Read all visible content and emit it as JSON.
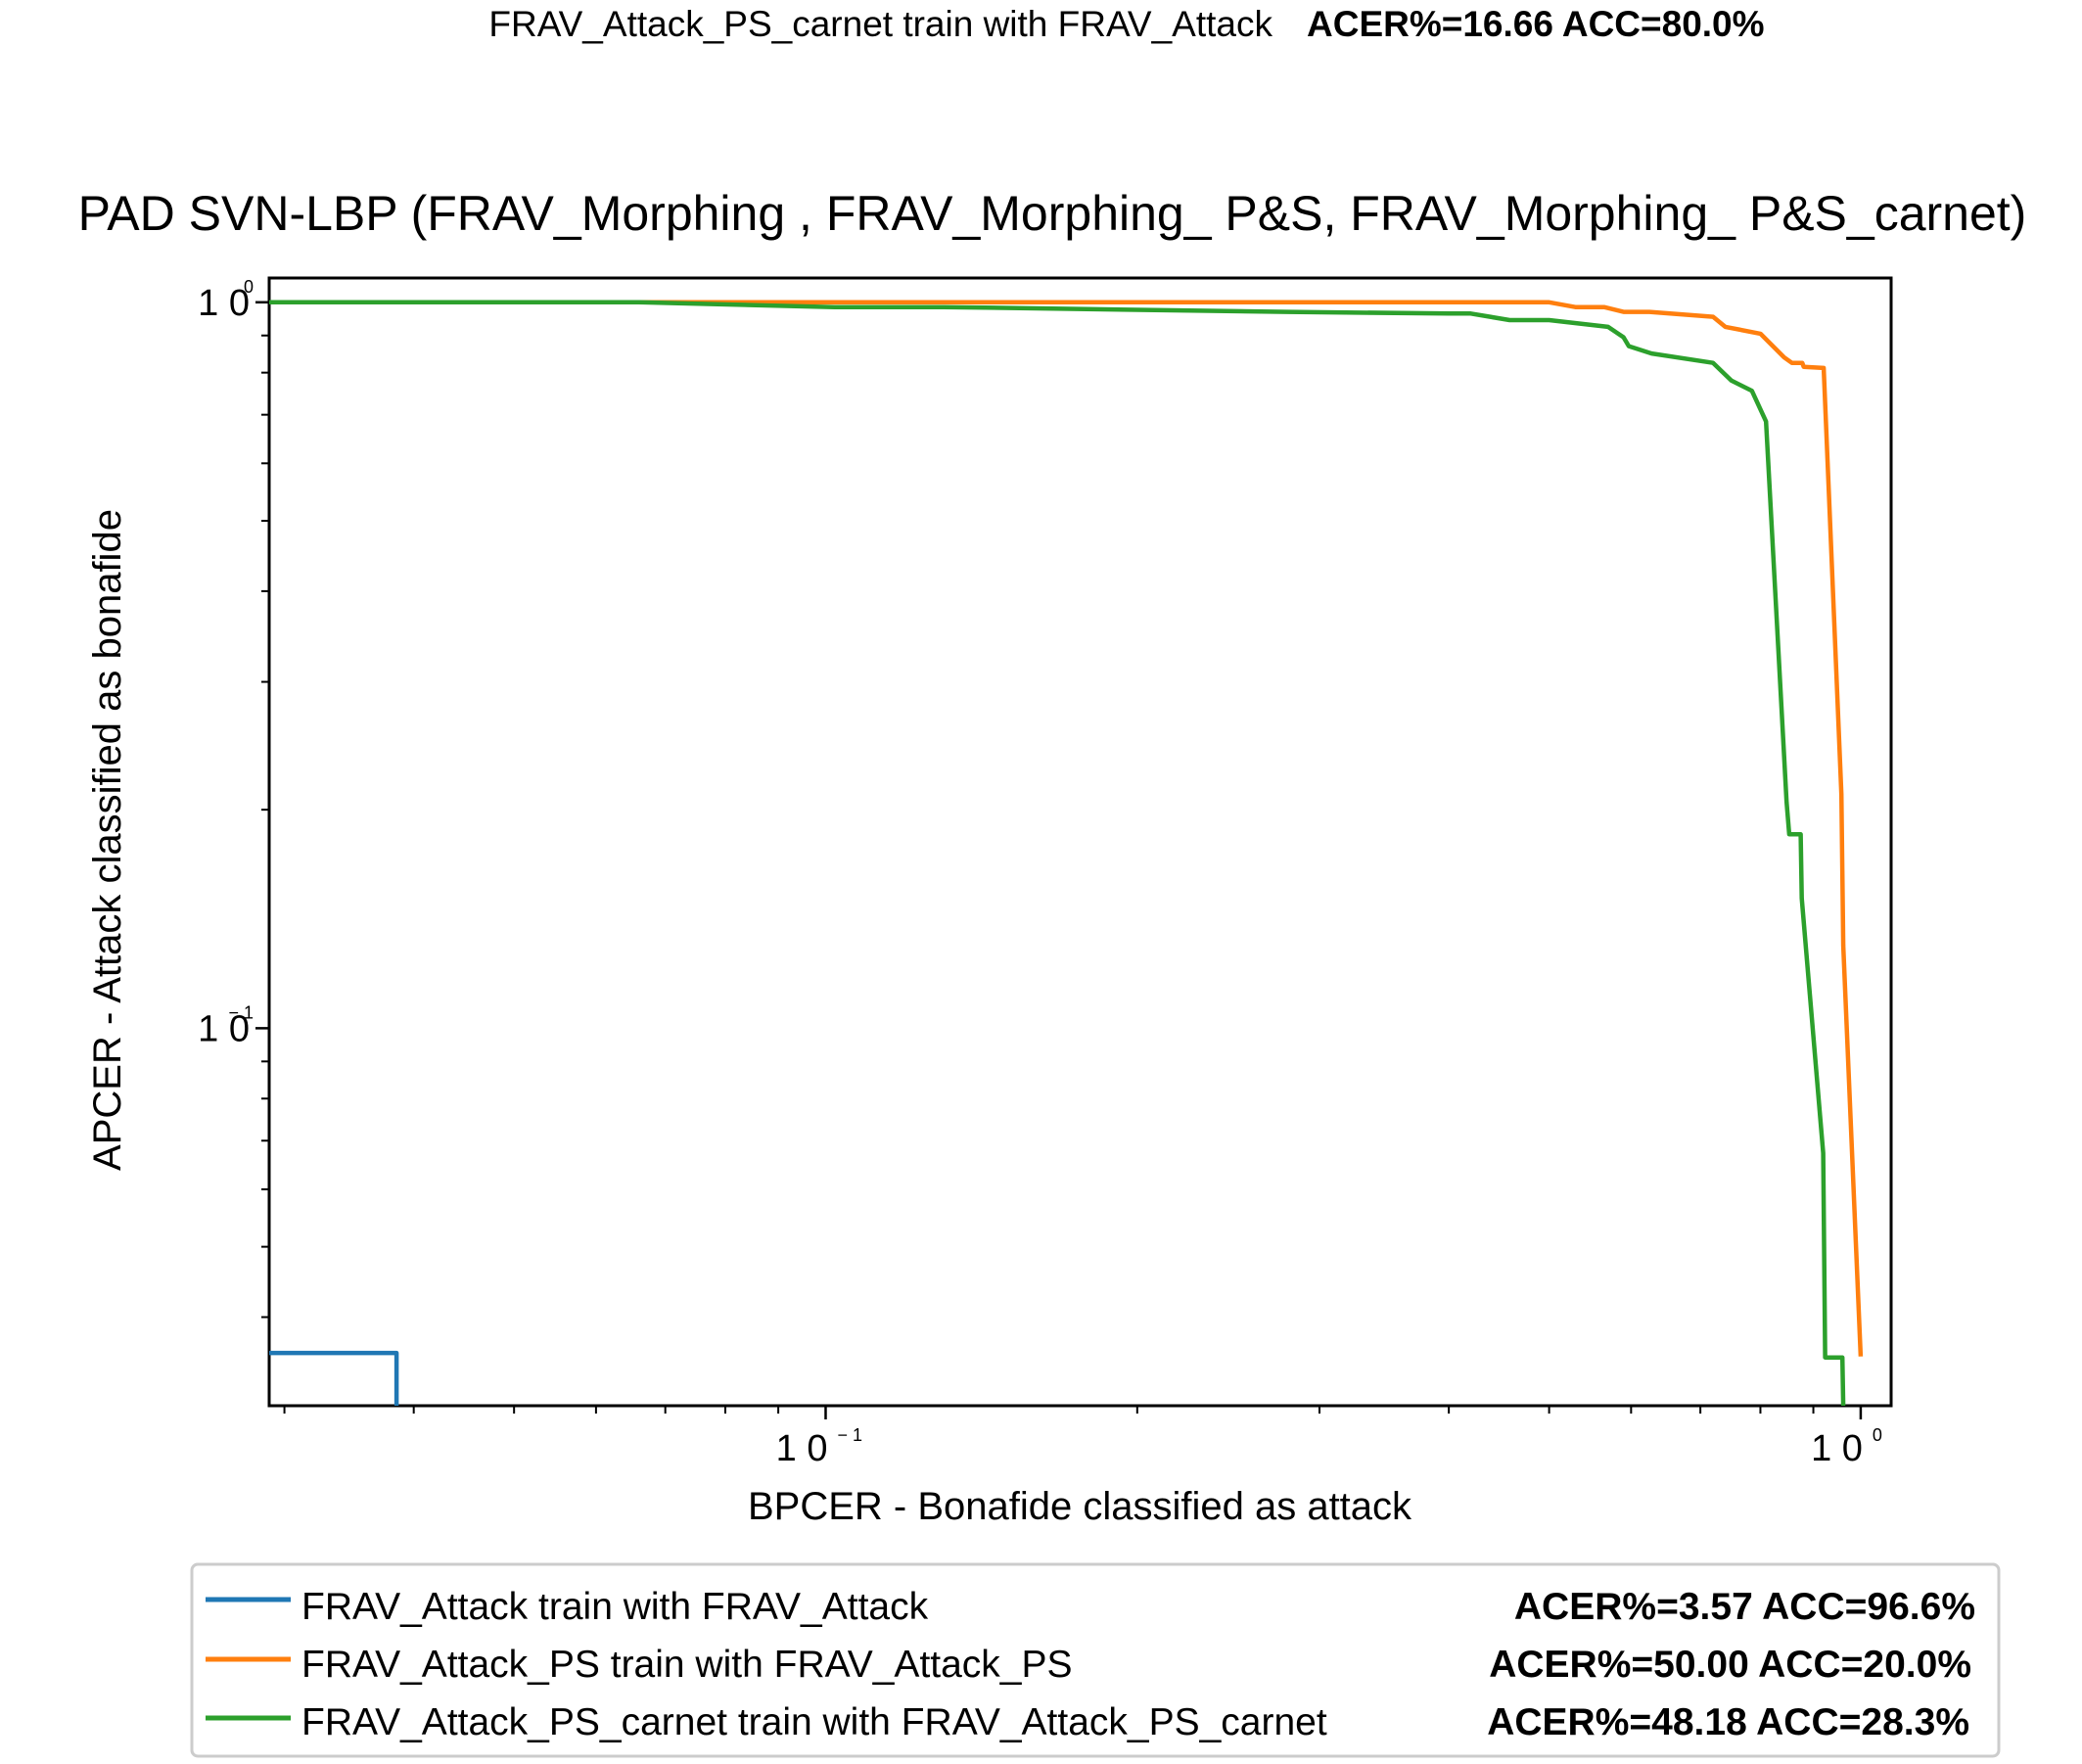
{
  "header": {
    "text": "FRAV_Attack_PS_carnet train with FRAV_Attack",
    "metrics": "ACER%=16.66 ACC=80.0%"
  },
  "chart_data": {
    "type": "line",
    "title": "PAD SVN-LBP (FRAV_Morphing , FRAV_Morphing_ P&S,  FRAV_Morphing_ P&S_carnet)",
    "xlabel": "BPCER - Bonafide classified as attack",
    "ylabel": "APCER - Attack classified as bonafide",
    "xscale": "log",
    "yscale": "log",
    "xlim": [
      0.029,
      1.07
    ],
    "ylim": [
      0.0302,
      1.08
    ],
    "x_ticks": [
      {
        "value": 0.1,
        "label": "1 0⁻¹"
      },
      {
        "value": 1.0,
        "label": "1 0⁰"
      }
    ],
    "y_ticks": [
      {
        "value": 0.1,
        "label": "1 0⁻¹"
      },
      {
        "value": 1.0,
        "label": "1 0⁰"
      }
    ],
    "grid": false,
    "legend_position": "bottom",
    "series": [
      {
        "name": "FRAV_Attack train with FRAV_Attack",
        "metrics": "ACER%=3.57 ACC=96.6%",
        "color": "#1f77b4",
        "points": [
          [
            0.029,
            0.0357
          ],
          [
            0.0385,
            0.0357
          ],
          [
            0.0385,
            0.0302
          ]
        ]
      },
      {
        "name": "FRAV_Attack_PS train with FRAV_Attack_PS",
        "metrics": "ACER%=50.00 ACC=20.0%",
        "color": "#ff7f0e",
        "points": [
          [
            0.029,
            1.0
          ],
          [
            0.5,
            1.0
          ],
          [
            0.53,
            0.985
          ],
          [
            0.565,
            0.985
          ],
          [
            0.59,
            0.97
          ],
          [
            0.625,
            0.97
          ],
          [
            0.72,
            0.955
          ],
          [
            0.74,
            0.925
          ],
          [
            0.8,
            0.905
          ],
          [
            0.843,
            0.84
          ],
          [
            0.858,
            0.825
          ],
          [
            0.878,
            0.825
          ],
          [
            0.881,
            0.815
          ],
          [
            0.921,
            0.812
          ],
          [
            0.958,
            0.21
          ],
          [
            0.962,
            0.13
          ],
          [
            1.0,
            0.0353
          ]
        ]
      },
      {
        "name": "FRAV_Attack_PS_carnet train with FRAV_Attack_PS_carnet",
        "metrics": "ACER%=48.18 ACC=28.3%",
        "color": "#2ca02c",
        "points": [
          [
            0.029,
            1.0
          ],
          [
            0.066,
            1.0
          ],
          [
            0.102,
            0.985
          ],
          [
            0.13,
            0.985
          ],
          [
            0.28,
            0.97
          ],
          [
            0.4,
            0.965
          ],
          [
            0.42,
            0.965
          ],
          [
            0.458,
            0.945
          ],
          [
            0.5,
            0.945
          ],
          [
            0.57,
            0.925
          ],
          [
            0.59,
            0.895
          ],
          [
            0.597,
            0.87
          ],
          [
            0.628,
            0.85
          ],
          [
            0.72,
            0.825
          ],
          [
            0.75,
            0.78
          ],
          [
            0.785,
            0.755
          ],
          [
            0.81,
            0.685
          ],
          [
            0.848,
            0.205
          ],
          [
            0.853,
            0.185
          ],
          [
            0.875,
            0.185
          ],
          [
            0.877,
            0.151
          ],
          [
            0.92,
            0.0673
          ],
          [
            0.924,
            0.0352
          ],
          [
            0.96,
            0.0352
          ],
          [
            0.962,
            0.0302
          ]
        ]
      }
    ]
  }
}
